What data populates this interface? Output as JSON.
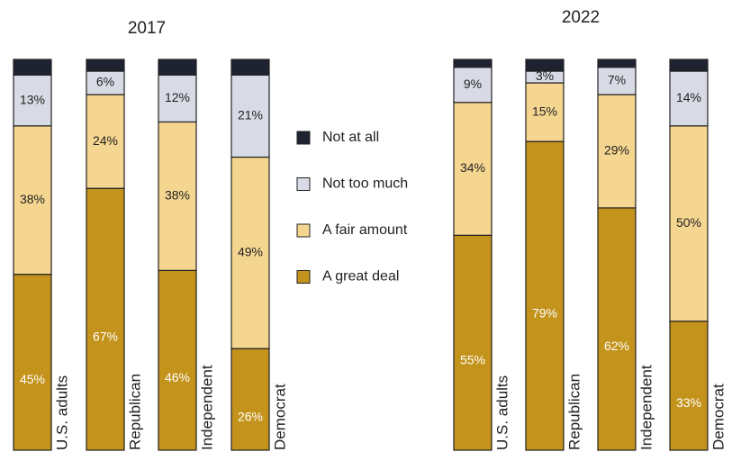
{
  "chart_data": [
    {
      "type": "bar",
      "stacked": true,
      "title": "2017",
      "categories": [
        "U.S. adults",
        "Republican",
        "Independent",
        "Democrat"
      ],
      "ylim": [
        0,
        100
      ],
      "series": [
        {
          "name": "A great deal",
          "color": "#c4931c",
          "values": [
            45,
            67,
            46,
            26
          ],
          "value_labels": [
            "45%",
            "67%",
            "46%",
            "26%"
          ]
        },
        {
          "name": "A fair amount",
          "color": "#f5d690",
          "values": [
            38,
            24,
            38,
            49
          ],
          "value_labels": [
            "38%",
            "24%",
            "38%",
            "49%"
          ]
        },
        {
          "name": "Not too much",
          "color": "#d8dbe5",
          "values": [
            13,
            6,
            12,
            21
          ],
          "value_labels": [
            "13%",
            "6%",
            "12%",
            "21%"
          ]
        },
        {
          "name": "Not at all",
          "color": "#1e2231",
          "values": [
            4,
            3,
            4,
            4
          ]
        }
      ]
    },
    {
      "type": "bar",
      "stacked": true,
      "title": "2022",
      "categories": [
        "U.S. adults",
        "Republican",
        "Independent",
        "Democrat"
      ],
      "ylim": [
        0,
        100
      ],
      "series": [
        {
          "color": "#c4931c",
          "values": [
            55,
            79,
            62,
            33
          ],
          "value_labels": [
            "55%",
            "79%",
            "62%",
            "33%"
          ]
        },
        {
          "color": "#f5d690",
          "values": [
            34,
            15,
            29,
            50
          ],
          "value_labels": [
            "34%",
            "15%",
            "29%",
            "50%"
          ]
        },
        {
          "color": "#d8dbe5",
          "values": [
            9,
            3,
            7,
            14
          ],
          "value_labels": [
            "9%",
            "3%",
            "7%",
            "14%"
          ]
        },
        {
          "color": "#1e2231",
          "values": [
            2,
            3,
            2,
            3
          ]
        }
      ]
    }
  ]
}
